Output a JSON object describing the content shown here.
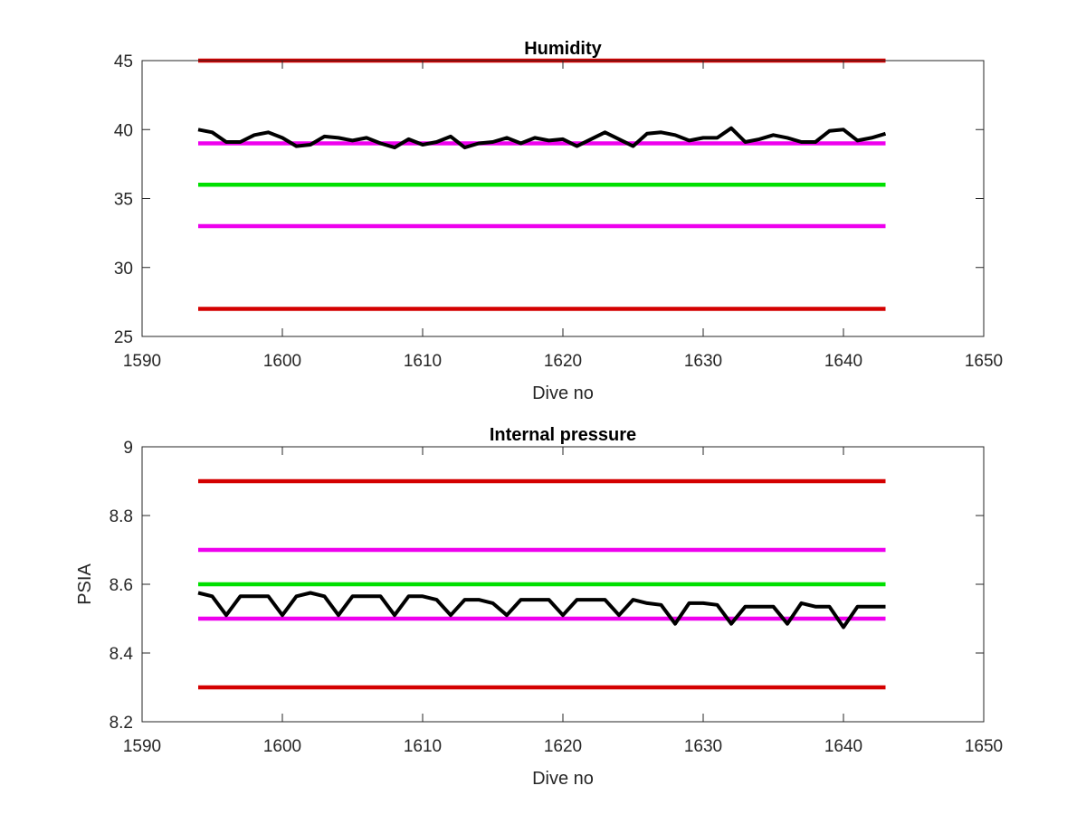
{
  "chart_data": [
    {
      "type": "line",
      "title": "Humidity",
      "xlabel": "Dive no",
      "ylabel": "",
      "xlim": [
        1590,
        1650
      ],
      "ylim": [
        25,
        45
      ],
      "xticks": [
        "1590",
        "1600",
        "1610",
        "1620",
        "1630",
        "1640",
        "1650"
      ],
      "yticks": [
        "25",
        "30",
        "35",
        "40",
        "45"
      ],
      "grid": false,
      "series": [
        {
          "color": "#d40000",
          "x": [
            1594,
            1643
          ],
          "y": [
            45,
            45
          ]
        },
        {
          "color": "#d40000",
          "x": [
            1594,
            1643
          ],
          "y": [
            27,
            27
          ]
        },
        {
          "color": "#ee00ee",
          "x": [
            1594,
            1643
          ],
          "y": [
            39,
            39
          ]
        },
        {
          "color": "#ee00ee",
          "x": [
            1594,
            1643
          ],
          "y": [
            33,
            33
          ]
        },
        {
          "color": "#00e000",
          "x": [
            1594,
            1643
          ],
          "y": [
            36,
            36
          ]
        },
        {
          "color": "#000000",
          "x": [
            1594,
            1595,
            1596,
            1597,
            1598,
            1599,
            1600,
            1601,
            1602,
            1603,
            1604,
            1605,
            1606,
            1607,
            1608,
            1609,
            1610,
            1611,
            1612,
            1613,
            1614,
            1615,
            1616,
            1617,
            1618,
            1619,
            1620,
            1621,
            1622,
            1623,
            1624,
            1625,
            1626,
            1627,
            1628,
            1629,
            1630,
            1631,
            1632,
            1633,
            1634,
            1635,
            1636,
            1637,
            1638,
            1639,
            1640,
            1641,
            1642,
            1643
          ],
          "y": [
            40.0,
            39.8,
            39.1,
            39.1,
            39.6,
            39.8,
            39.4,
            38.8,
            38.9,
            39.5,
            39.4,
            39.2,
            39.4,
            39.0,
            38.7,
            39.3,
            38.9,
            39.1,
            39.5,
            38.7,
            39.0,
            39.1,
            39.4,
            39.0,
            39.4,
            39.2,
            39.3,
            38.8,
            39.3,
            39.8,
            39.3,
            38.8,
            39.7,
            39.8,
            39.6,
            39.2,
            39.4,
            39.4,
            40.1,
            39.1,
            39.3,
            39.6,
            39.4,
            39.1,
            39.1,
            39.9,
            40.0,
            39.2,
            39.4,
            39.7
          ]
        }
      ]
    },
    {
      "type": "line",
      "title": "Internal pressure",
      "xlabel": "Dive no",
      "ylabel": "PSIA",
      "xlim": [
        1590,
        1650
      ],
      "ylim": [
        8.2,
        9.0
      ],
      "xticks": [
        "1590",
        "1600",
        "1610",
        "1620",
        "1630",
        "1640",
        "1650"
      ],
      "yticks": [
        "8.2",
        "8.4",
        "8.6",
        "8.8",
        "9"
      ],
      "grid": false,
      "series": [
        {
          "color": "#d40000",
          "x": [
            1594,
            1643
          ],
          "y": [
            8.9,
            8.9
          ]
        },
        {
          "color": "#d40000",
          "x": [
            1594,
            1643
          ],
          "y": [
            8.3,
            8.3
          ]
        },
        {
          "color": "#ee00ee",
          "x": [
            1594,
            1643
          ],
          "y": [
            8.7,
            8.7
          ]
        },
        {
          "color": "#ee00ee",
          "x": [
            1594,
            1643
          ],
          "y": [
            8.5,
            8.5
          ]
        },
        {
          "color": "#00e000",
          "x": [
            1594,
            1643
          ],
          "y": [
            8.6,
            8.6
          ]
        },
        {
          "color": "#000000",
          "x": [
            1594,
            1595,
            1596,
            1597,
            1598,
            1599,
            1600,
            1601,
            1602,
            1603,
            1604,
            1605,
            1606,
            1607,
            1608,
            1609,
            1610,
            1611,
            1612,
            1613,
            1614,
            1615,
            1616,
            1617,
            1618,
            1619,
            1620,
            1621,
            1622,
            1623,
            1624,
            1625,
            1626,
            1627,
            1628,
            1629,
            1630,
            1631,
            1632,
            1633,
            1634,
            1635,
            1636,
            1637,
            1638,
            1639,
            1640,
            1641,
            1642,
            1643
          ],
          "y": [
            8.575,
            8.565,
            8.51,
            8.565,
            8.565,
            8.565,
            8.51,
            8.565,
            8.575,
            8.565,
            8.51,
            8.565,
            8.565,
            8.565,
            8.51,
            8.565,
            8.565,
            8.555,
            8.51,
            8.555,
            8.555,
            8.545,
            8.51,
            8.555,
            8.555,
            8.555,
            8.51,
            8.555,
            8.555,
            8.555,
            8.51,
            8.555,
            8.545,
            8.54,
            8.485,
            8.545,
            8.545,
            8.54,
            8.485,
            8.535,
            8.535,
            8.535,
            8.485,
            8.545,
            8.535,
            8.535,
            8.475,
            8.535,
            8.535,
            8.535
          ]
        }
      ]
    }
  ]
}
